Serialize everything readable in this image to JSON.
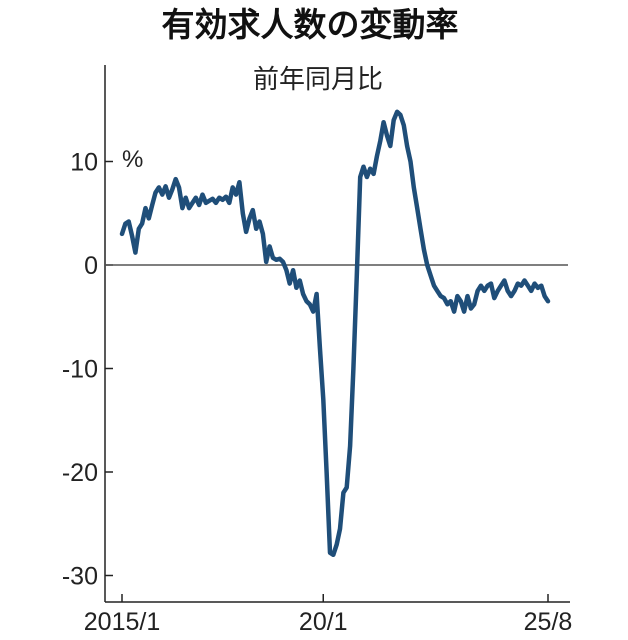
{
  "chart_data": {
    "type": "line",
    "title": "有効求人数の変動率",
    "subtitle": "前年同月比",
    "ylabel": "%",
    "ylim": [
      -31,
      20
    ],
    "yticks": [
      10,
      0,
      -10,
      -20,
      -30
    ],
    "ytick_labels": [
      "10",
      "0",
      "-10",
      "-20",
      "-30"
    ],
    "xtick_labels": [
      {
        "label": "2015/1",
        "date": "2015-01"
      },
      {
        "label": "20/1",
        "date": "2020-01"
      },
      {
        "label": "25/8",
        "date": "2025-08"
      }
    ],
    "zero_line": true,
    "grid": false,
    "line_color": "#1f4e79",
    "series": [
      {
        "values": [
          [
            "2015-01",
            3.0
          ],
          [
            "2015-02",
            4.0
          ],
          [
            "2015-03",
            4.2
          ],
          [
            "2015-04",
            2.8
          ],
          [
            "2015-05",
            1.2
          ],
          [
            "2015-06",
            3.5
          ],
          [
            "2015-07",
            4.0
          ],
          [
            "2015-08",
            5.5
          ],
          [
            "2015-09",
            4.5
          ],
          [
            "2015-10",
            5.8
          ],
          [
            "2015-11",
            7.0
          ],
          [
            "2015-12",
            7.5
          ],
          [
            "2016-01",
            6.8
          ],
          [
            "2016-02",
            7.6
          ],
          [
            "2016-03",
            6.5
          ],
          [
            "2016-04",
            7.3
          ],
          [
            "2016-05",
            8.3
          ],
          [
            "2016-06",
            7.5
          ],
          [
            "2016-07",
            5.5
          ],
          [
            "2016-08",
            6.5
          ],
          [
            "2016-09",
            5.5
          ],
          [
            "2016-10",
            6.0
          ],
          [
            "2016-11",
            6.5
          ],
          [
            "2016-12",
            5.8
          ],
          [
            "2017-01",
            6.8
          ],
          [
            "2017-02",
            6.0
          ],
          [
            "2017-03",
            6.2
          ],
          [
            "2017-04",
            6.4
          ],
          [
            "2017-05",
            6.0
          ],
          [
            "2017-06",
            6.5
          ],
          [
            "2017-07",
            6.3
          ],
          [
            "2017-08",
            6.6
          ],
          [
            "2017-09",
            6.0
          ],
          [
            "2017-10",
            7.5
          ],
          [
            "2017-11",
            6.8
          ],
          [
            "2017-12",
            8.0
          ],
          [
            "2018-01",
            5.0
          ],
          [
            "2018-02",
            3.2
          ],
          [
            "2018-03",
            4.5
          ],
          [
            "2018-04",
            5.3
          ],
          [
            "2018-05",
            3.5
          ],
          [
            "2018-06",
            4.2
          ],
          [
            "2018-07",
            3.0
          ],
          [
            "2018-08",
            0.3
          ],
          [
            "2018-09",
            1.8
          ],
          [
            "2018-10",
            0.7
          ],
          [
            "2018-11",
            0.5
          ],
          [
            "2018-12",
            0.6
          ],
          [
            "2019-01",
            0.3
          ],
          [
            "2019-02",
            -0.5
          ],
          [
            "2019-03",
            -1.8
          ],
          [
            "2019-04",
            -0.5
          ],
          [
            "2019-05",
            -2.2
          ],
          [
            "2019-06",
            -1.5
          ],
          [
            "2019-07",
            -2.8
          ],
          [
            "2019-08",
            -3.5
          ],
          [
            "2019-09",
            -3.8
          ],
          [
            "2019-10",
            -4.5
          ],
          [
            "2019-11",
            -2.8
          ],
          [
            "2019-12",
            -8.0
          ],
          [
            "2020-01",
            -13.0
          ],
          [
            "2020-02",
            -20.0
          ],
          [
            "2020-03",
            -27.8
          ],
          [
            "2020-04",
            -28.0
          ],
          [
            "2020-05",
            -27.0
          ],
          [
            "2020-06",
            -25.5
          ],
          [
            "2020-07",
            -22.0
          ],
          [
            "2020-08",
            -21.5
          ],
          [
            "2020-09",
            -17.5
          ],
          [
            "2020-10",
            -10.0
          ],
          [
            "2020-11",
            -1.0
          ],
          [
            "2020-12",
            8.5
          ],
          [
            "2021-01",
            9.5
          ],
          [
            "2021-02",
            8.5
          ],
          [
            "2021-03",
            9.3
          ],
          [
            "2021-04",
            8.8
          ],
          [
            "2021-05",
            10.5
          ],
          [
            "2021-06",
            12.0
          ],
          [
            "2021-07",
            13.8
          ],
          [
            "2021-08",
            12.5
          ],
          [
            "2021-09",
            11.5
          ],
          [
            "2021-10",
            14.0
          ],
          [
            "2021-11",
            14.8
          ],
          [
            "2021-12",
            14.5
          ],
          [
            "2022-01",
            13.5
          ],
          [
            "2022-02",
            11.5
          ],
          [
            "2022-03",
            10.0
          ],
          [
            "2022-04",
            7.5
          ],
          [
            "2022-05",
            5.5
          ],
          [
            "2022-06",
            3.5
          ],
          [
            "2022-07",
            1.5
          ],
          [
            "2022-08",
            0.0
          ],
          [
            "2022-09",
            -1.0
          ],
          [
            "2022-10",
            -2.0
          ],
          [
            "2022-11",
            -2.5
          ],
          [
            "2022-12",
            -3.0
          ],
          [
            "2023-01",
            -3.2
          ],
          [
            "2023-02",
            -3.8
          ],
          [
            "2023-03",
            -3.5
          ],
          [
            "2023-04",
            -4.5
          ],
          [
            "2023-05",
            -3.0
          ],
          [
            "2023-06",
            -3.5
          ],
          [
            "2023-07",
            -4.5
          ],
          [
            "2023-08",
            -3.0
          ],
          [
            "2023-09",
            -4.2
          ],
          [
            "2023-10",
            -3.8
          ],
          [
            "2023-11",
            -2.5
          ],
          [
            "2023-12",
            -2.0
          ],
          [
            "2024-01",
            -2.5
          ],
          [
            "2024-02",
            -2.0
          ],
          [
            "2024-03",
            -1.8
          ],
          [
            "2024-04",
            -3.2
          ],
          [
            "2024-05",
            -2.5
          ],
          [
            "2024-06",
            -2.0
          ],
          [
            "2024-07",
            -1.5
          ],
          [
            "2024-08",
            -2.5
          ],
          [
            "2024-09",
            -3.0
          ],
          [
            "2024-10",
            -2.5
          ],
          [
            "2024-11",
            -1.8
          ],
          [
            "2024-12",
            -2.0
          ],
          [
            "2025-01",
            -1.5
          ],
          [
            "2025-02",
            -2.0
          ],
          [
            "2025-03",
            -2.5
          ],
          [
            "2025-04",
            -1.8
          ],
          [
            "2025-05",
            -2.2
          ],
          [
            "2025-06",
            -2.0
          ],
          [
            "2025-07",
            -3.0
          ],
          [
            "2025-08",
            -3.5
          ]
        ]
      }
    ]
  }
}
